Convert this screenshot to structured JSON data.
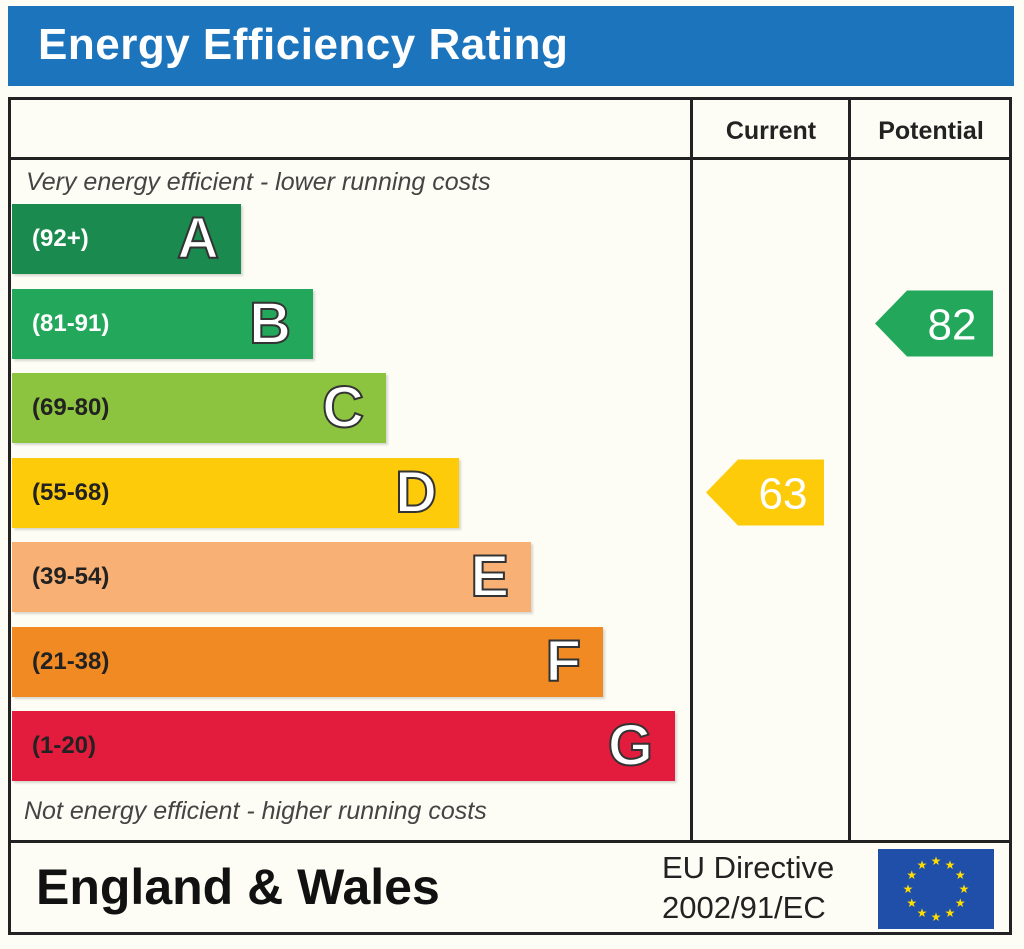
{
  "title": "Energy Efficiency Rating",
  "columns": {
    "current": "Current",
    "potential": "Potential"
  },
  "notes": {
    "top": "Very energy efficient - lower running costs",
    "bottom": "Not energy efficient - higher running costs"
  },
  "footer": {
    "country": "England & Wales",
    "directive_line1": "EU Directive",
    "directive_line2": "2002/91/EC",
    "flag_icon": "eu-flag-icon"
  },
  "chart_data": {
    "type": "bar",
    "categories": [
      "A",
      "B",
      "C",
      "D",
      "E",
      "F",
      "G"
    ],
    "bands": [
      {
        "letter": "A",
        "range": "(92+)",
        "color": "#1a8a4f",
        "range_color": "#ffffff"
      },
      {
        "letter": "B",
        "range": "(81-91)",
        "color": "#23a85b",
        "range_color": "#ffffff"
      },
      {
        "letter": "C",
        "range": "(69-80)",
        "color": "#8cc43f",
        "range_color": "#222222"
      },
      {
        "letter": "D",
        "range": "(55-68)",
        "color": "#fecb0b",
        "range_color": "#222222"
      },
      {
        "letter": "E",
        "range": "(39-54)",
        "color": "#f8b074",
        "range_color": "#222222"
      },
      {
        "letter": "F",
        "range": "(21-38)",
        "color": "#f28a23",
        "range_color": "#222222"
      },
      {
        "letter": "G",
        "range": "(1-20)",
        "color": "#e31c3d",
        "range_color": "#222222"
      }
    ],
    "current": {
      "value": 63,
      "band": "D",
      "color": "#fecb0b"
    },
    "potential": {
      "value": 82,
      "band": "B",
      "color": "#23a85b"
    }
  }
}
